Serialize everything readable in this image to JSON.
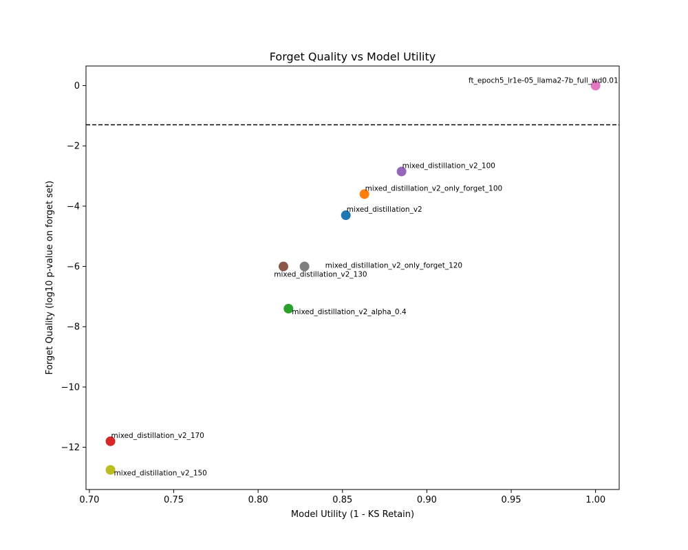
{
  "chart_data": {
    "type": "scatter",
    "title": "Forget Quality vs Model Utility",
    "xlabel": "Model Utility (1 - KS Retain)",
    "ylabel": "Forget Quality (log10 p-value on forget set)",
    "xlim": [
      0.698,
      1.014
    ],
    "ylim": [
      -13.4,
      0.65
    ],
    "x_ticks": [
      0.7,
      0.75,
      0.8,
      0.85,
      0.9,
      0.95,
      1.0
    ],
    "x_tick_labels": [
      "0.70",
      "0.75",
      "0.80",
      "0.85",
      "0.90",
      "0.95",
      "1.00"
    ],
    "y_ticks": [
      0,
      -2,
      -4,
      -6,
      -8,
      -10,
      -12
    ],
    "y_tick_labels": [
      "0",
      "−2",
      "−4",
      "−6",
      "−8",
      "−10",
      "−12"
    ],
    "grid": false,
    "reference_line": {
      "y": -1.3,
      "style": "dashed",
      "color": "#000000"
    },
    "points": [
      {
        "label": "mixed_distillation_v2",
        "x": 0.852,
        "y": -4.3,
        "color": "#1f77b4",
        "label_anchor": "right-above"
      },
      {
        "label": "mixed_distillation_v2_only_forget_100",
        "x": 0.863,
        "y": -3.6,
        "color": "#ff7f0e",
        "label_anchor": "right-above"
      },
      {
        "label": "mixed_distillation_v2_alpha_0.4",
        "x": 0.818,
        "y": -7.4,
        "color": "#2ca02c",
        "label_anchor": "right-below"
      },
      {
        "label": "mixed_distillation_v2_170",
        "x": 0.7125,
        "y": -11.8,
        "color": "#d62728",
        "label_anchor": "right-above"
      },
      {
        "label": "mixed_distillation_v2_100",
        "x": 0.885,
        "y": -2.85,
        "color": "#9467bd",
        "label_anchor": "right-above"
      },
      {
        "label": "mixed_distillation_v2_130",
        "x": 0.815,
        "y": -6.0,
        "color": "#8c564b",
        "label_anchor": "below-center"
      },
      {
        "label": "ft_epoch5_lr1e-05_llama2-7b_full_wd0.01",
        "x": 1.0,
        "y": 0.0,
        "color": "#e377c2",
        "label_anchor": "left-above"
      },
      {
        "label": "mixed_distillation_v2_only_forget_120",
        "x": 0.8275,
        "y": -6.0,
        "color": "#7f7f7f",
        "label_anchor": "far-right"
      },
      {
        "label": "mixed_distillation_v2_150",
        "x": 0.7125,
        "y": -12.75,
        "color": "#bcbd22",
        "label_anchor": "right-below"
      }
    ]
  }
}
